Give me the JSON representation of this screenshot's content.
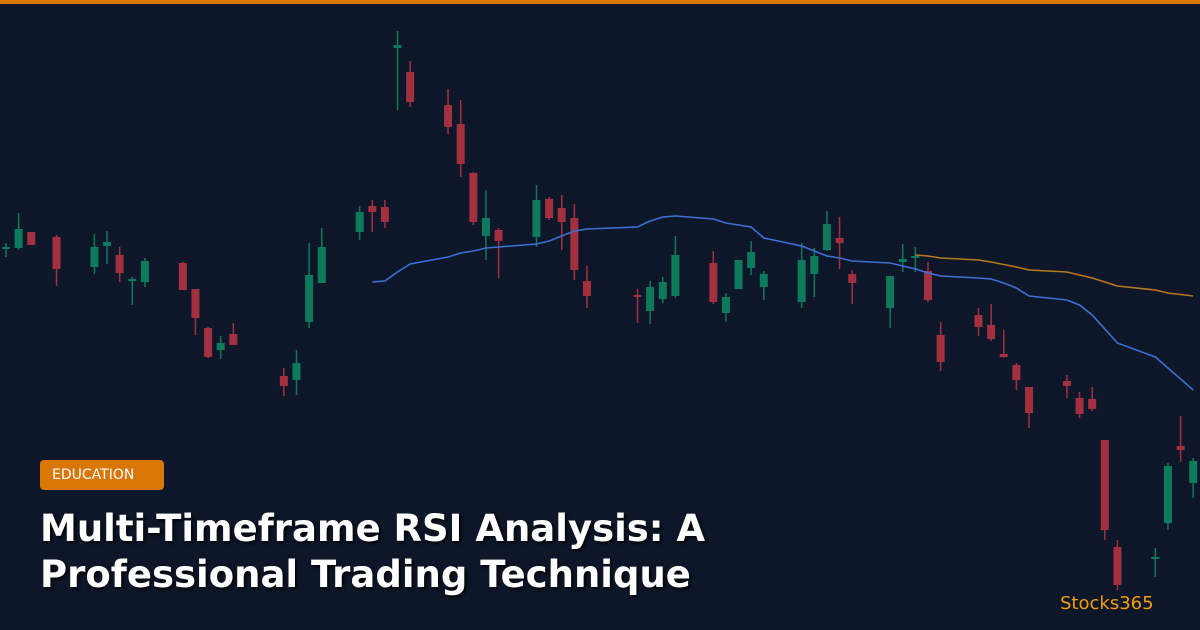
{
  "colors": {
    "accent": "#d97706",
    "background": "#0e1729",
    "up": "#0d7a5c",
    "down": "#a3303f",
    "ma_fast": "#3b6fd4",
    "ma_slow": "#b7791f",
    "brand": "#f59e0b"
  },
  "badge": {
    "label": "EDUCATION"
  },
  "title": {
    "line1": "Multi-Timeframe RSI Analysis: A",
    "line2": "Professional Trading Technique"
  },
  "brand": {
    "name": "Stocks365"
  },
  "chart_data": {
    "type": "candlestick",
    "grid": false,
    "axes": false,
    "candles_ohlc": [
      [
        0,
        382,
        387,
        373,
        383
      ],
      [
        1,
        382,
        417,
        380,
        401
      ],
      [
        2,
        398,
        398,
        385,
        385
      ],
      [
        4,
        393,
        395,
        344,
        361
      ],
      [
        7,
        363,
        396,
        356,
        383
      ],
      [
        8,
        384,
        399,
        366,
        388
      ],
      [
        9,
        375,
        383,
        348,
        357
      ],
      [
        10,
        349,
        353,
        325,
        351
      ],
      [
        11,
        348,
        372,
        343,
        369
      ],
      [
        14,
        367,
        368,
        340,
        340
      ],
      [
        15,
        341,
        341,
        295,
        312
      ],
      [
        16,
        302,
        303,
        272,
        273
      ],
      [
        17,
        280,
        294,
        271,
        287
      ],
      [
        18,
        296,
        307,
        285,
        285
      ],
      [
        22,
        254,
        262,
        234,
        244
      ],
      [
        23,
        250,
        280,
        235,
        267
      ],
      [
        24,
        308,
        387,
        302,
        355
      ],
      [
        25,
        347,
        402,
        347,
        383
      ],
      [
        28,
        398,
        424,
        390,
        418
      ],
      [
        29,
        424,
        430,
        398,
        418
      ],
      [
        30,
        423,
        430,
        402,
        408
      ],
      [
        31,
        582,
        599,
        520,
        585
      ],
      [
        32,
        558,
        569,
        523,
        528
      ],
      [
        35,
        525,
        541,
        496,
        503
      ],
      [
        36,
        506,
        530,
        453,
        466
      ],
      [
        37,
        457,
        458,
        405,
        408
      ],
      [
        38,
        394,
        440,
        370,
        412
      ],
      [
        39,
        400,
        402,
        352,
        389
      ],
      [
        42,
        393,
        445,
        383,
        430
      ],
      [
        43,
        431,
        433,
        410,
        412
      ],
      [
        44,
        422,
        435,
        380,
        408
      ],
      [
        45,
        412,
        426,
        350,
        360
      ],
      [
        46,
        349,
        364,
        322,
        334
      ],
      [
        50,
        335,
        341,
        307,
        333
      ],
      [
        51,
        319,
        349,
        306,
        343
      ],
      [
        52,
        331,
        353,
        327,
        348
      ],
      [
        53,
        334,
        394,
        332,
        375
      ],
      [
        56,
        367,
        379,
        326,
        328
      ],
      [
        57,
        317,
        337,
        308,
        333
      ],
      [
        58,
        341,
        370,
        341,
        370
      ],
      [
        59,
        362,
        389,
        355,
        378
      ],
      [
        60,
        343,
        359,
        330,
        356
      ],
      [
        63,
        328,
        387,
        322,
        370
      ],
      [
        64,
        356,
        382,
        333,
        374
      ],
      [
        65,
        380,
        419,
        379,
        406
      ],
      [
        66,
        392,
        413,
        361,
        387
      ],
      [
        67,
        356,
        360,
        326,
        347
      ],
      [
        70,
        322,
        354,
        302,
        354
      ],
      [
        71,
        368,
        386,
        358,
        371
      ],
      [
        72,
        372,
        383,
        358,
        374
      ],
      [
        73,
        359,
        368,
        328,
        330
      ],
      [
        74,
        295,
        308,
        259,
        268
      ],
      [
        77,
        315,
        322,
        294,
        303
      ],
      [
        78,
        305,
        326,
        289,
        291
      ],
      [
        79,
        276,
        300,
        272,
        273
      ],
      [
        80,
        265,
        267,
        240,
        250
      ],
      [
        81,
        243,
        243,
        202,
        217
      ],
      [
        84,
        249,
        255,
        232,
        244
      ],
      [
        85,
        232,
        238,
        212,
        216
      ],
      [
        86,
        231,
        243,
        219,
        221
      ],
      [
        87,
        190,
        190,
        90,
        100
      ],
      [
        88,
        83,
        90,
        40,
        45
      ],
      [
        91,
        72,
        82,
        53,
        73
      ],
      [
        92,
        107,
        167,
        100,
        164
      ],
      [
        93,
        184,
        214,
        168,
        180
      ],
      [
        94,
        147,
        172,
        132,
        169
      ]
    ],
    "moving_average_fast": [
      [
        29,
        348
      ],
      [
        30,
        349
      ],
      [
        31,
        358
      ],
      [
        32,
        366
      ],
      [
        35,
        373
      ],
      [
        36,
        377
      ],
      [
        37,
        379
      ],
      [
        38,
        382
      ],
      [
        39,
        383
      ],
      [
        42,
        386
      ],
      [
        43,
        389
      ],
      [
        44,
        394
      ],
      [
        45,
        399
      ],
      [
        46,
        401
      ],
      [
        50,
        403
      ],
      [
        51,
        409
      ],
      [
        52,
        413
      ],
      [
        53,
        414
      ],
      [
        56,
        411
      ],
      [
        57,
        407
      ],
      [
        58,
        405
      ],
      [
        59,
        403
      ],
      [
        60,
        392
      ],
      [
        63,
        384
      ],
      [
        64,
        379
      ],
      [
        65,
        374
      ],
      [
        66,
        372
      ],
      [
        67,
        369
      ],
      [
        70,
        367
      ],
      [
        71,
        364
      ],
      [
        72,
        361
      ],
      [
        73,
        357
      ],
      [
        74,
        354
      ],
      [
        77,
        352
      ],
      [
        78,
        351
      ],
      [
        79,
        347
      ],
      [
        80,
        342
      ],
      [
        81,
        334
      ],
      [
        84,
        330
      ],
      [
        85,
        325
      ],
      [
        86,
        315
      ],
      [
        88,
        287
      ],
      [
        91,
        273
      ],
      [
        94,
        240
      ]
    ],
    "moving_average_slow": [
      [
        72,
        375
      ],
      [
        73,
        374
      ],
      [
        74,
        372
      ],
      [
        77,
        370
      ],
      [
        78,
        368
      ],
      [
        80,
        363
      ],
      [
        81,
        360
      ],
      [
        84,
        358
      ],
      [
        85,
        355
      ],
      [
        86,
        352
      ],
      [
        88,
        344
      ],
      [
        91,
        340
      ],
      [
        92,
        337
      ],
      [
        94,
        334
      ]
    ]
  }
}
